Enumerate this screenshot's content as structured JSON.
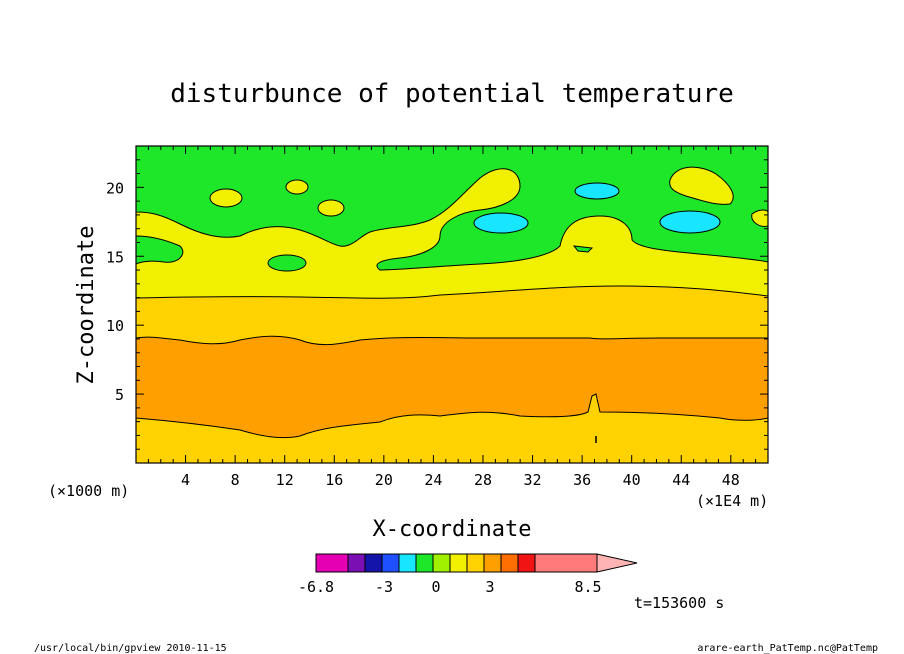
{
  "chart_data": {
    "type": "heatmap",
    "title": "disturbunce of potential temperature",
    "xlabel": "X-coordinate",
    "ylabel": "Z-coordinate",
    "x_unit_left": "(×1000 m)",
    "x_unit_right": "(×1E4 m)",
    "xlim": [
      0,
      51
    ],
    "ylim": [
      0,
      23
    ],
    "x_ticks": [
      "4",
      "8",
      "12",
      "16",
      "20",
      "24",
      "28",
      "32",
      "36",
      "40",
      "44",
      "48"
    ],
    "y_ticks": [
      "5",
      "10",
      "15",
      "20"
    ],
    "y_tick_values": [
      5,
      10,
      15,
      20
    ],
    "x_tick_values": [
      4,
      8,
      12,
      16,
      20,
      24,
      28,
      32,
      36,
      40,
      44,
      48
    ],
    "colorbar": {
      "labels": [
        "-6.8",
        "-3",
        "0",
        "3",
        "8.5"
      ],
      "label_values": [
        -6.8,
        -3,
        0,
        3,
        8.5
      ],
      "colors": [
        "#e600b4",
        "#7a10b4",
        "#1414aa",
        "#1e50ff",
        "#18e6ff",
        "#1ee628",
        "#a0f000",
        "#f0f000",
        "#ffd200",
        "#ffa000",
        "#ff6e00",
        "#f01414",
        "#ff7a7a",
        "#ffb4b4"
      ]
    },
    "bands": [
      {
        "level": "1 to 2",
        "color": "#ffd200",
        "z_range": [
          0,
          3
        ]
      },
      {
        "level": "2 to 3",
        "color": "#ffa000",
        "z_range": [
          3,
          9.3
        ]
      },
      {
        "level": "1 to 2",
        "color": "#ffd200",
        "z_range": [
          9.3,
          12
        ]
      },
      {
        "level": "0.5 to 1",
        "color": "#f0f000",
        "z_range": [
          12,
          17
        ]
      },
      {
        "level": "0 to 0.5",
        "color": "#1ee628",
        "z_range": [
          17,
          23
        ]
      }
    ],
    "time_label": "t=153600 s"
  },
  "footer": {
    "left": "/usr/local/bin/gpview  2010-11-15",
    "right": "arare-earth_PatTemp.nc@PatTemp"
  }
}
